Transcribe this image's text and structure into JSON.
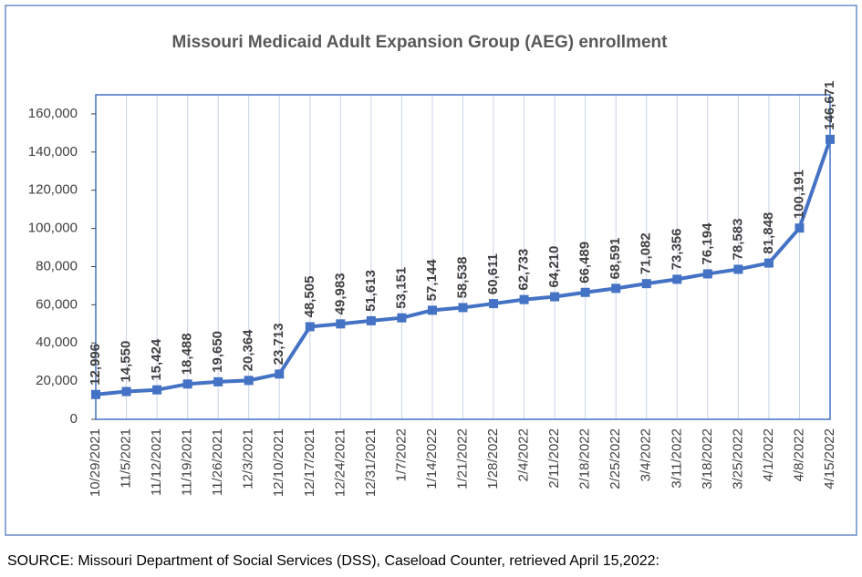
{
  "chart_data": {
    "type": "line",
    "title": "Missouri Medicaid Adult Expansion Group (AEG) enrollment",
    "categories": [
      "10/29/2021",
      "11/5/2021",
      "11/12/2021",
      "11/19/2021",
      "11/26/2021",
      "12/3/2021",
      "12/10/2021",
      "12/17/2021",
      "12/24/2021",
      "12/31/2021",
      "1/7/2022",
      "1/14/2022",
      "1/21/2022",
      "1/28/2022",
      "2/4/2022",
      "2/11/2022",
      "2/18/2022",
      "2/25/2022",
      "3/4/2022",
      "3/11/2022",
      "3/18/2022",
      "3/25/2022",
      "4/1/2022",
      "4/8/2022",
      "4/15/2022"
    ],
    "values": [
      12996,
      14550,
      15424,
      18488,
      19650,
      20364,
      23713,
      48505,
      49983,
      51613,
      53151,
      57144,
      58538,
      60611,
      62733,
      64210,
      66489,
      68591,
      71082,
      73356,
      76194,
      78583,
      81848,
      100191,
      146671
    ],
    "value_labels": [
      "12,996",
      "14,550",
      "15,424",
      "18,488",
      "19,650",
      "20,364",
      "23,713",
      "48,505",
      "49,983",
      "51,613",
      "53,151",
      "57,144",
      "58,538",
      "60,611",
      "62,733",
      "64,210",
      "66,489",
      "68,591",
      "71,082",
      "73,356",
      "76,194",
      "78,583",
      "81,848",
      "100,191",
      "146,671"
    ],
    "color": "#4472c4",
    "ylim": [
      0,
      170000
    ],
    "yticks": [
      0,
      {
        "value": 20000,
        "label": "20,000"
      },
      {
        "value": 40000,
        "label": "40,000"
      },
      {
        "value": 60000,
        "label": "60,000"
      },
      {
        "value": 80000,
        "label": "80,000"
      },
      {
        "value": 100000,
        "label": "100,000"
      },
      {
        "value": 120000,
        "label": "120,000"
      },
      {
        "value": 140000,
        "label": "140,000"
      },
      {
        "value": 160000,
        "label": "160,000"
      }
    ],
    "grid": true
  },
  "source": "SOURCE: Missouri Department of Social Services (DSS), Caseload Counter, retrieved April 15,2022:"
}
